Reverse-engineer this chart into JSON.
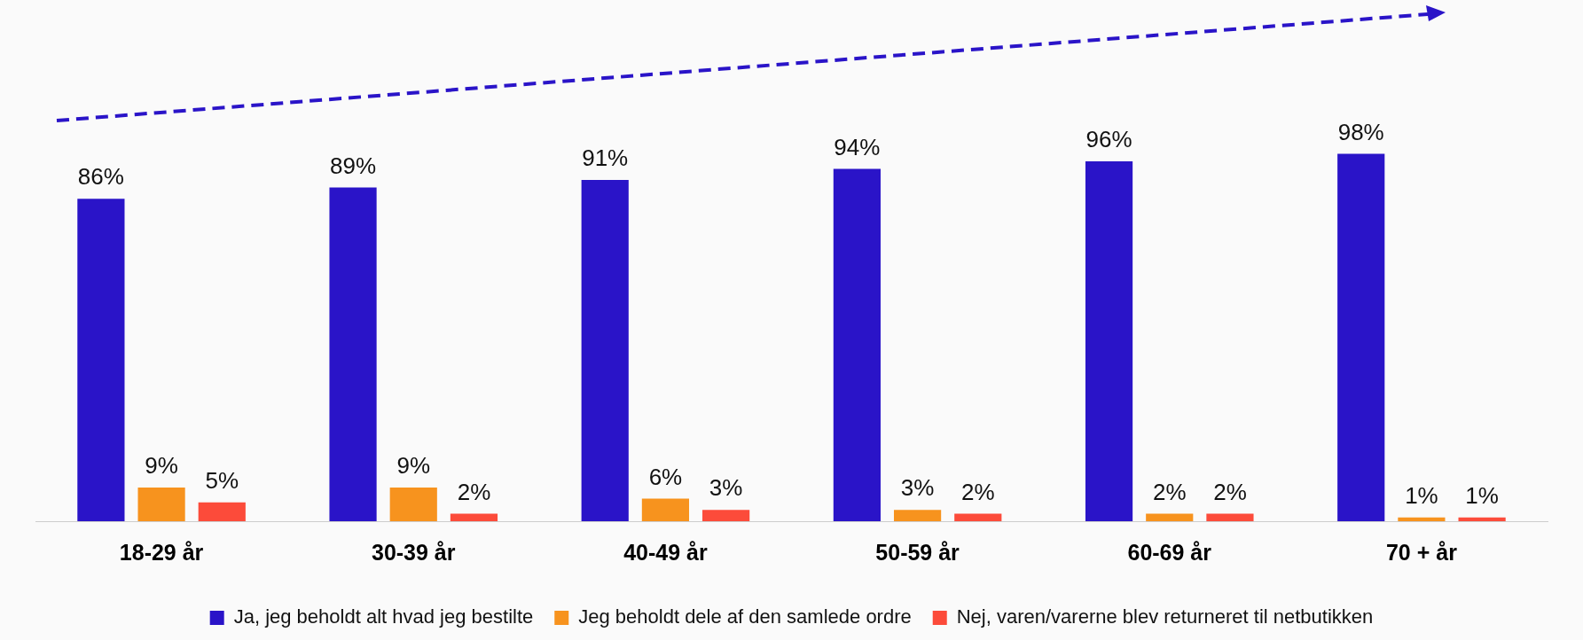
{
  "chart_data": {
    "type": "bar",
    "categories": [
      "18-29 år",
      "30-39 år",
      "40-49 år",
      "50-59 år",
      "60-69 år",
      "70 + år"
    ],
    "series": [
      {
        "name": "Ja, jeg beholdt alt hvad jeg bestilte",
        "color": "#2a14c8",
        "values": [
          86,
          89,
          91,
          94,
          96,
          98
        ],
        "value_labels": [
          "86%",
          "89%",
          "91%",
          "94%",
          "96%",
          "98%"
        ]
      },
      {
        "name": "Jeg beholdt dele af den samlede ordre",
        "color": "#f7931e",
        "values": [
          9,
          9,
          6,
          3,
          2,
          1
        ],
        "value_labels": [
          "9%",
          "9%",
          "6%",
          "3%",
          "2%",
          "1%"
        ]
      },
      {
        "name": "Nej, varen/varerne blev returneret til netbutikken",
        "color": "#fc4b3a",
        "values": [
          5,
          2,
          3,
          2,
          2,
          1
        ],
        "value_labels": [
          "5%",
          "2%",
          "3%",
          "2%",
          "2%",
          "1%"
        ]
      }
    ],
    "tick_labels": "x",
    "grid": false,
    "legend": "bottom"
  }
}
